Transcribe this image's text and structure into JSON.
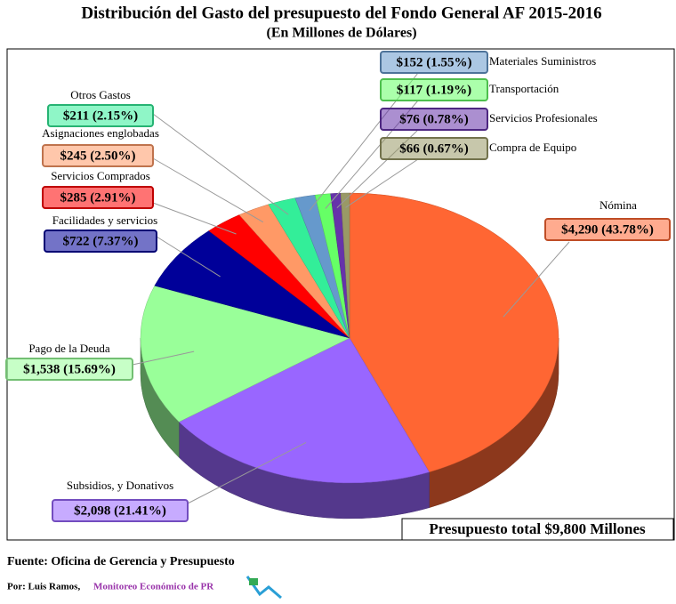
{
  "chart_data": {
    "type": "pie3d",
    "title": "Distribución del Gasto del presupuesto del Fondo General AF 2015-2016",
    "subtitle": "(En Millones de Dólares)",
    "categories": [
      "Nómina",
      "Subsidios, y Donativos",
      "Pago de la Deuda",
      "Facilidades y servicios",
      "Servicios Comprados",
      "Asignaciones englobadas",
      "Otros Gastos",
      "Materiales Suministros",
      "Transportación",
      "Servicios Profesionales",
      "Compra de Equipo"
    ],
    "values": [
      4290,
      2098,
      1538,
      722,
      285,
      245,
      211,
      152,
      117,
      76,
      66
    ],
    "value_labels": [
      "$4,290 (43.78%)",
      "$2,098 (21.41%)",
      "$1,538 (15.69%)",
      "$722 (7.37%)",
      "$285 (2.91%)",
      "$245 (2.50%)",
      "$211 (2.15%)",
      "$152 (1.55%)",
      "$117 (1.19%)",
      "$76 (0.78%)",
      "$66 (0.67%)"
    ],
    "colors": [
      "#ff6633",
      "#9966ff",
      "#99ff99",
      "#000099",
      "#ff0000",
      "#ff9966",
      "#33ee99",
      "#6699cc",
      "#66ff66",
      "#6633aa",
      "#999966"
    ],
    "total_label": "Presupuesto total $9,800 Millones"
  },
  "footer": {
    "source": "Fuente: Oficina de Gerencia y Presupuesto",
    "author": "Por: Luis Ramos,",
    "brand": "Monitoreo Económico de PR"
  }
}
